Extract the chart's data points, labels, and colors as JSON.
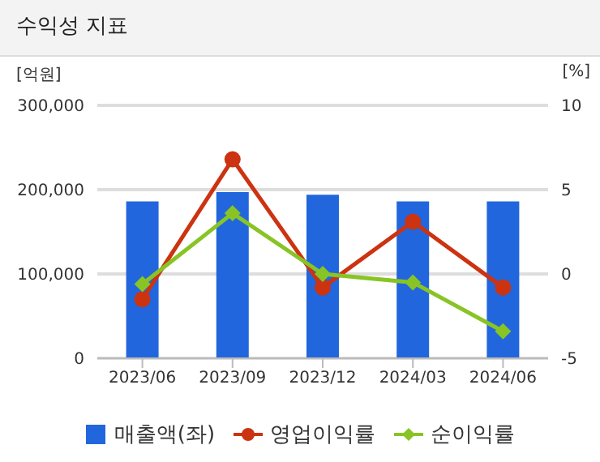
{
  "chart_data": {
    "type": "bar",
    "title": "수익성 지표",
    "ylabel": "[억원]",
    "y2label": "[%]",
    "categories": [
      "2023/06",
      "2023/09",
      "2023/12",
      "2024/03",
      "2024/06"
    ],
    "series": [
      {
        "name": "매출액(좌)",
        "color": "#2266dd",
        "values": [
          186000,
          197000,
          194000,
          186000,
          186000
        ]
      },
      {
        "name": "영업이익률",
        "type": "line",
        "axis": "y2",
        "marker": "circle",
        "color": "#cc3311",
        "values": [
          -1.5,
          6.8,
          -0.8,
          3.1,
          -0.8
        ]
      },
      {
        "name": "순이익률",
        "type": "line",
        "axis": "y2",
        "marker": "diamond",
        "color": "#88c425",
        "values": [
          -0.6,
          3.6,
          0,
          -0.5,
          -3.4
        ]
      }
    ],
    "ylim": [
      0,
      300000
    ],
    "yticks": [
      0,
      {
        "value": 100000,
        "label": "100,000"
      },
      {
        "value": 200000,
        "label": "200,000"
      },
      {
        "value": 300000,
        "label": "300,000"
      }
    ],
    "y2lim": [
      -5,
      10
    ],
    "y2ticks": [
      -5,
      0,
      5,
      10
    ],
    "grid": "y",
    "legend": "bottom"
  }
}
